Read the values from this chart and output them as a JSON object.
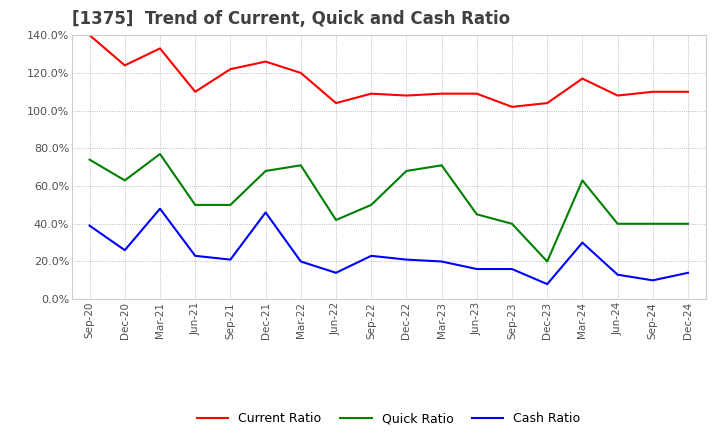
{
  "title": "[1375]  Trend of Current, Quick and Cash Ratio",
  "title_color": "#404040",
  "background_color": "#ffffff",
  "plot_bg_color": "#ffffff",
  "grid_color": "#aaaaaa",
  "ylim": [
    0,
    1.4
  ],
  "yticks": [
    0.0,
    0.2,
    0.4,
    0.6,
    0.8,
    1.0,
    1.2,
    1.4
  ],
  "x_labels": [
    "Sep-20",
    "Dec-20",
    "Mar-21",
    "Jun-21",
    "Sep-21",
    "Dec-21",
    "Mar-22",
    "Jun-22",
    "Sep-22",
    "Dec-22",
    "Mar-23",
    "Jun-23",
    "Sep-23",
    "Dec-23",
    "Mar-24",
    "Jun-24",
    "Sep-24",
    "Dec-24"
  ],
  "current_ratio": [
    1.4,
    1.24,
    1.33,
    1.1,
    1.22,
    1.26,
    1.2,
    1.04,
    1.09,
    1.08,
    1.09,
    1.09,
    1.02,
    1.04,
    1.17,
    1.08,
    1.1,
    1.1
  ],
  "quick_ratio": [
    0.74,
    0.63,
    0.77,
    0.5,
    0.5,
    0.68,
    0.71,
    0.42,
    0.5,
    0.68,
    0.71,
    0.45,
    0.4,
    0.2,
    0.63,
    0.4,
    0.4,
    0.4
  ],
  "cash_ratio": [
    0.39,
    0.26,
    0.48,
    0.23,
    0.21,
    0.46,
    0.2,
    0.14,
    0.23,
    0.21,
    0.2,
    0.16,
    0.16,
    0.08,
    0.3,
    0.13,
    0.1,
    0.14
  ],
  "current_color": "#ff0000",
  "quick_color": "#008000",
  "cash_color": "#0000ff",
  "legend_labels": [
    "Current Ratio",
    "Quick Ratio",
    "Cash Ratio"
  ],
  "line_width": 1.5,
  "figsize": [
    7.2,
    4.4
  ],
  "dpi": 100
}
